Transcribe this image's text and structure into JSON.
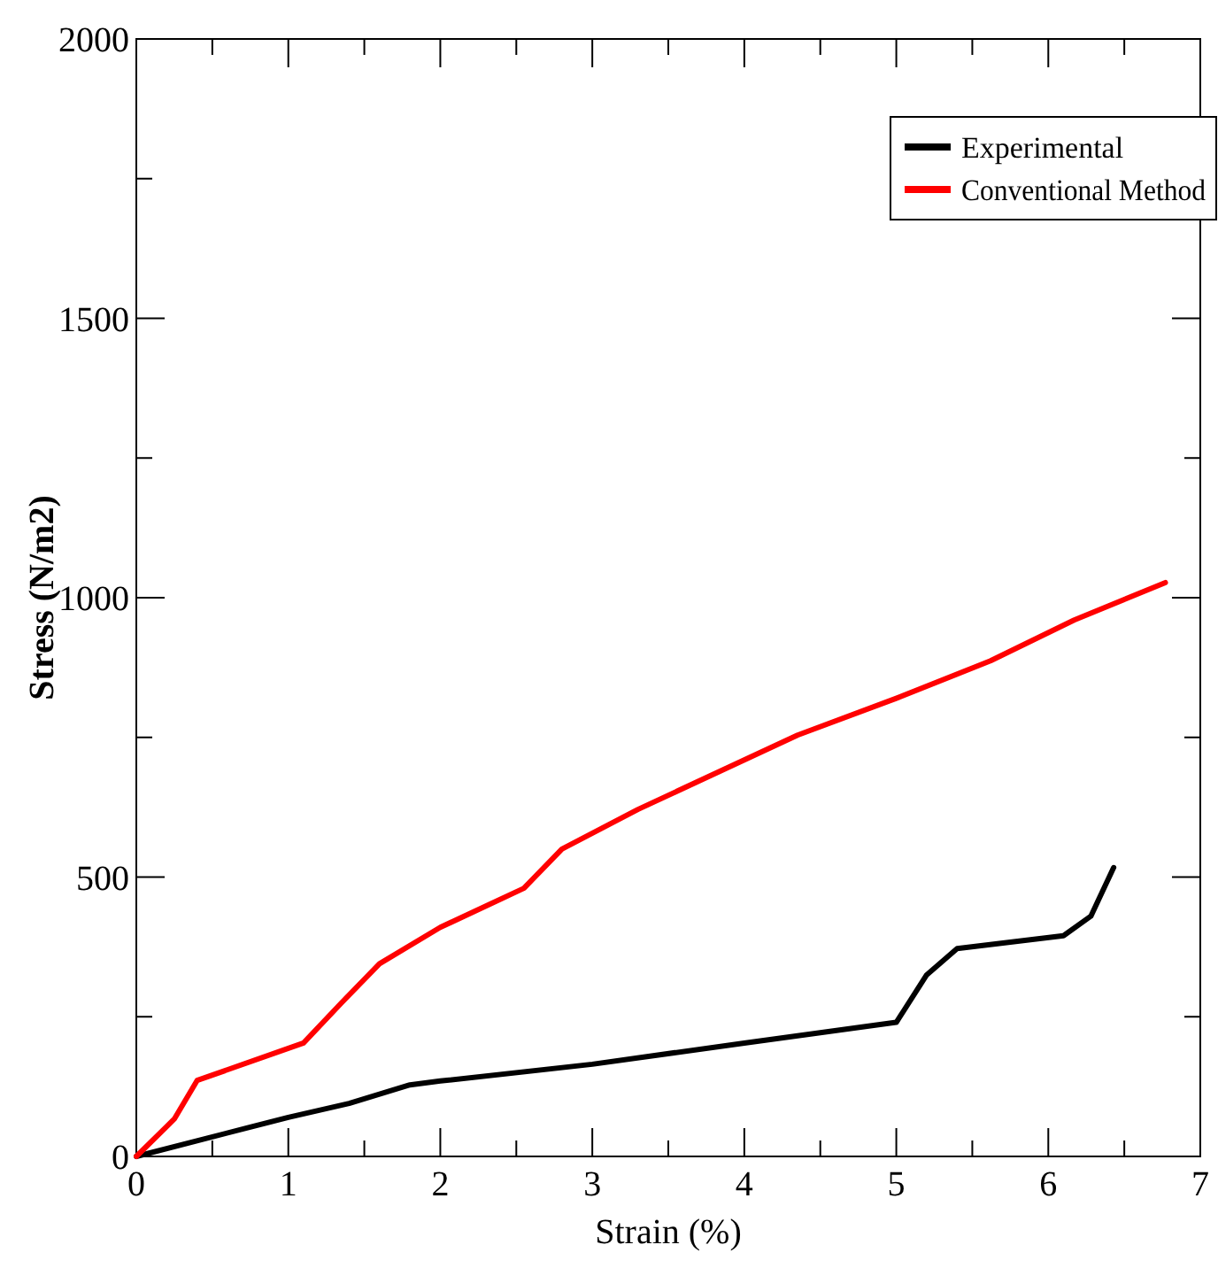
{
  "chart_data": {
    "type": "line",
    "xlabel": "Strain (%)",
    "ylabel": "Stress (N/m2)",
    "xlim": [
      0,
      7
    ],
    "ylim": [
      0,
      2000
    ],
    "xticks": [
      0,
      1,
      2,
      3,
      4,
      5,
      6,
      7
    ],
    "yticks": [
      0,
      500,
      1000,
      1500,
      2000
    ],
    "legend": "top right",
    "grid": false,
    "series": [
      {
        "name": "Experimental",
        "color": "#000000",
        "x": [
          0,
          1,
          1.4,
          1.8,
          2,
          3,
          4,
          5,
          5.2,
          5.4,
          6.1,
          6.28,
          6.43
        ],
        "values": [
          0,
          70,
          95,
          128,
          135,
          165,
          203,
          240,
          325,
          372,
          395,
          430,
          517
        ]
      },
      {
        "name": "Conventional Method",
        "color": "#ff0000",
        "x": [
          0,
          0.25,
          0.4,
          1.1,
          1.35,
          1.6,
          2,
          2.55,
          2.8,
          3.3,
          4.35,
          5,
          5.62,
          6.17,
          6.77
        ],
        "values": [
          0,
          67,
          136,
          203,
          275,
          345,
          410,
          480,
          550,
          621,
          754,
          820,
          887,
          960,
          1027
        ]
      }
    ]
  }
}
